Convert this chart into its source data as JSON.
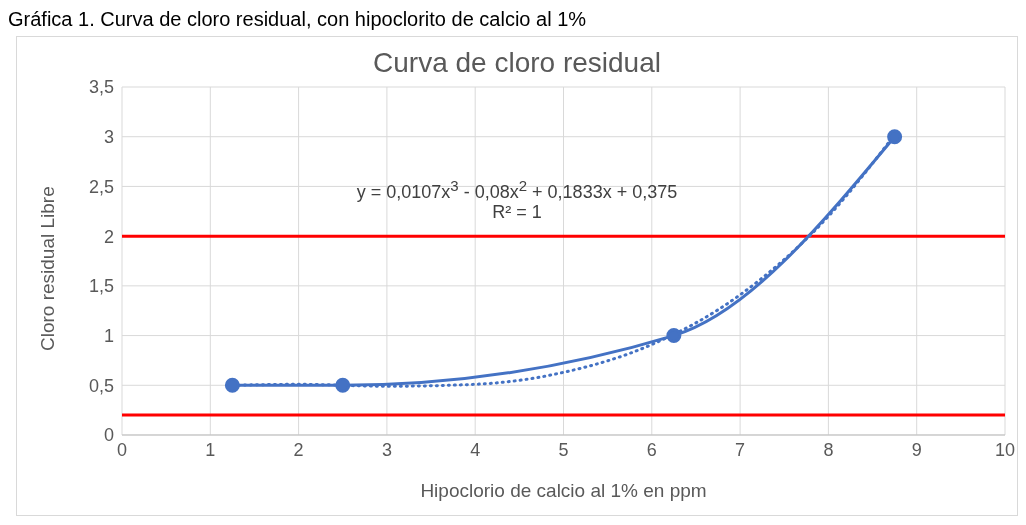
{
  "chart_data": {
    "type": "line",
    "title": "Curva de cloro residual",
    "xlabel": "Hipoclorio de calcio al 1% en ppm",
    "ylabel": "Cloro residual Libre",
    "annotations": [
      "Gráfica 1. Curva de cloro residual, con hipoclorito de calcio al 1%",
      "y = 0,0107x$^{3}$ - 0,08x$^{2}$ + 0,1833x + 0,375",
      "R² = 1"
    ],
    "series": [
      {
        "color": "#4472c4",
        "x": [
          1.25,
          2.5,
          6.25,
          8.75
        ],
        "values": [
          0.5,
          0.5,
          1,
          3
        ],
        "marker": "circle",
        "line_style": "solid"
      },
      {
        "color": "#4472c4",
        "x": [
          1.25,
          2,
          3,
          4,
          5,
          6,
          7,
          8,
          8.75
        ],
        "values": [
          0.5,
          0.51,
          0.49,
          0.51,
          0.63,
          0.91,
          1.41,
          2.2,
          3.02
        ],
        "marker": "none",
        "line_style": "dotted"
      }
    ],
    "ref_lines": [
      {
        "axis": "y",
        "value": 2,
        "color": "#ff0000"
      },
      {
        "axis": "y",
        "value": 0.2,
        "color": "#ff0000"
      }
    ],
    "xlim": [
      0,
      10
    ],
    "xticks": [
      0,
      1,
      2,
      3,
      4,
      5,
      6,
      7,
      8,
      9,
      10
    ],
    "ylim": [
      0,
      3.5
    ],
    "yticks": [
      0,
      {
        "value": 0.5,
        "label": "0,5"
      },
      1,
      {
        "value": 1.5,
        "label": "1,5"
      },
      2,
      {
        "value": 2.5,
        "label": "2,5"
      },
      3,
      {
        "value": 3.5,
        "label": "3,5"
      }
    ],
    "grid": true
  }
}
